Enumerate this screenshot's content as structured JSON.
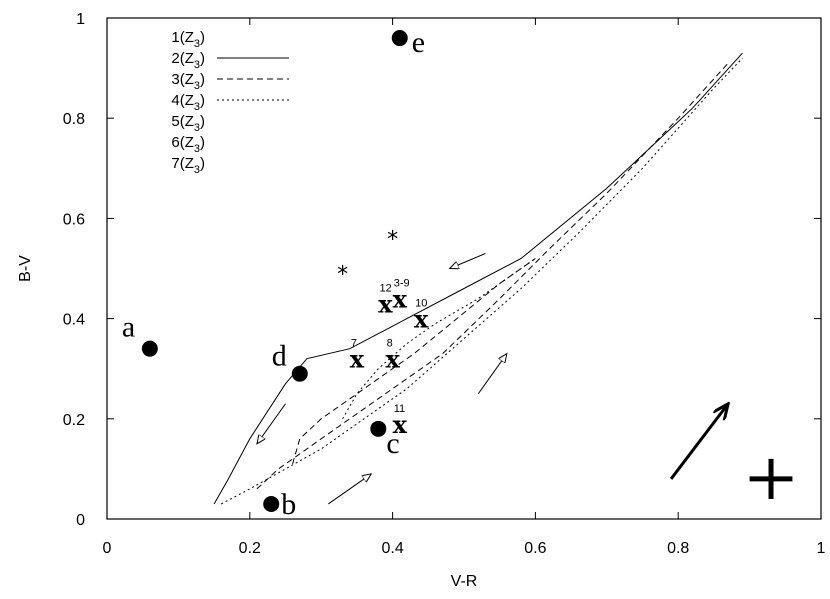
{
  "chart_data": {
    "type": "line",
    "xlabel": "V-R",
    "ylabel": "B-V",
    "xlim": [
      0,
      1
    ],
    "ylim": [
      0,
      1
    ],
    "x_ticks": [
      "0",
      "0.2",
      "0.4",
      "0.6",
      "0.8",
      "1"
    ],
    "y_ticks": [
      "0",
      "0.2",
      "0.4",
      "0.6",
      "0.8",
      "1"
    ],
    "grid": false,
    "legend_position": "top-left",
    "legend": [
      {
        "label": "1(Z",
        "sub": "3",
        "close": ")",
        "style": "none"
      },
      {
        "label": "2(Z",
        "sub": "3",
        "close": ")",
        "style": "solid"
      },
      {
        "label": "3(Z",
        "sub": "3",
        "close": ")",
        "style": "dashed"
      },
      {
        "label": "4(Z",
        "sub": "3",
        "close": ")",
        "style": "dotted"
      },
      {
        "label": "5(Z",
        "sub": "3",
        "close": ")",
        "style": "none"
      },
      {
        "label": "6(Z",
        "sub": "3",
        "close": ")",
        "style": "none"
      },
      {
        "label": "7(Z",
        "sub": "3",
        "close": ")",
        "style": "none"
      }
    ],
    "series": [
      {
        "style": "solid",
        "x": [
          0.15,
          0.17,
          0.2,
          0.25,
          0.28,
          0.34,
          0.42,
          0.5,
          0.58,
          0.7,
          0.82,
          0.89
        ],
        "y": [
          0.03,
          0.08,
          0.16,
          0.27,
          0.32,
          0.34,
          0.4,
          0.46,
          0.52,
          0.66,
          0.82,
          0.93
        ]
      },
      {
        "style": "dashed",
        "x": [
          0.21,
          0.24,
          0.27,
          0.31,
          0.36,
          0.41,
          0.47,
          0.55,
          0.62,
          0.7,
          0.8,
          0.87
        ],
        "y": [
          0.06,
          0.1,
          0.13,
          0.17,
          0.22,
          0.27,
          0.33,
          0.44,
          0.54,
          0.65,
          0.8,
          0.91
        ]
      },
      {
        "style": "dotted",
        "x": [
          0.16,
          0.2,
          0.25,
          0.3,
          0.36,
          0.42,
          0.5,
          0.58,
          0.66,
          0.75,
          0.85,
          0.89
        ],
        "y": [
          0.03,
          0.06,
          0.1,
          0.14,
          0.2,
          0.26,
          0.36,
          0.46,
          0.57,
          0.7,
          0.86,
          0.92
        ]
      },
      {
        "style": "dashed",
        "x": [
          0.26,
          0.27,
          0.3,
          0.34,
          0.38,
          0.43,
          0.49,
          0.55,
          0.6
        ],
        "y": [
          0.11,
          0.16,
          0.2,
          0.24,
          0.28,
          0.33,
          0.4,
          0.47,
          0.52
        ]
      },
      {
        "style": "dotted",
        "x": [
          0.33,
          0.35,
          0.38,
          0.42,
          0.46,
          0.52,
          0.57,
          0.6
        ],
        "y": [
          0.2,
          0.25,
          0.3,
          0.35,
          0.39,
          0.44,
          0.49,
          0.52
        ]
      }
    ],
    "named_points": [
      {
        "label": "a",
        "x": 0.06,
        "y": 0.34
      },
      {
        "label": "b",
        "x": 0.23,
        "y": 0.03
      },
      {
        "label": "c",
        "x": 0.38,
        "y": 0.18
      },
      {
        "label": "d",
        "x": 0.27,
        "y": 0.29
      },
      {
        "label": "e",
        "x": 0.41,
        "y": 0.96
      }
    ],
    "x_points": [
      {
        "label": "12",
        "x": 0.39,
        "y": 0.43
      },
      {
        "label": "3-9",
        "x": 0.41,
        "y": 0.44
      },
      {
        "label": "10",
        "x": 0.44,
        "y": 0.4
      },
      {
        "label": "7",
        "x": 0.35,
        "y": 0.32
      },
      {
        "label": "8",
        "x": 0.4,
        "y": 0.32
      },
      {
        "label": "11",
        "x": 0.41,
        "y": 0.19
      }
    ],
    "star_points": [
      {
        "x": 0.33,
        "y": 0.49
      },
      {
        "x": 0.4,
        "y": 0.56
      }
    ],
    "arrows": [
      {
        "x1": 0.53,
        "y1": 0.53,
        "x2": 0.48,
        "y2": 0.5
      },
      {
        "x1": 0.25,
        "y1": 0.23,
        "x2": 0.21,
        "y2": 0.15
      },
      {
        "x1": 0.52,
        "y1": 0.25,
        "x2": 0.56,
        "y2": 0.33
      },
      {
        "x1": 0.31,
        "y1": 0.03,
        "x2": 0.37,
        "y2": 0.09
      }
    ],
    "reddening_vector": {
      "x1": 0.79,
      "y1": 0.08,
      "x2": 0.87,
      "y2": 0.23
    },
    "error_cross": {
      "x": 0.93,
      "y": 0.08,
      "dx": 0.03,
      "dy": 0.04
    }
  }
}
